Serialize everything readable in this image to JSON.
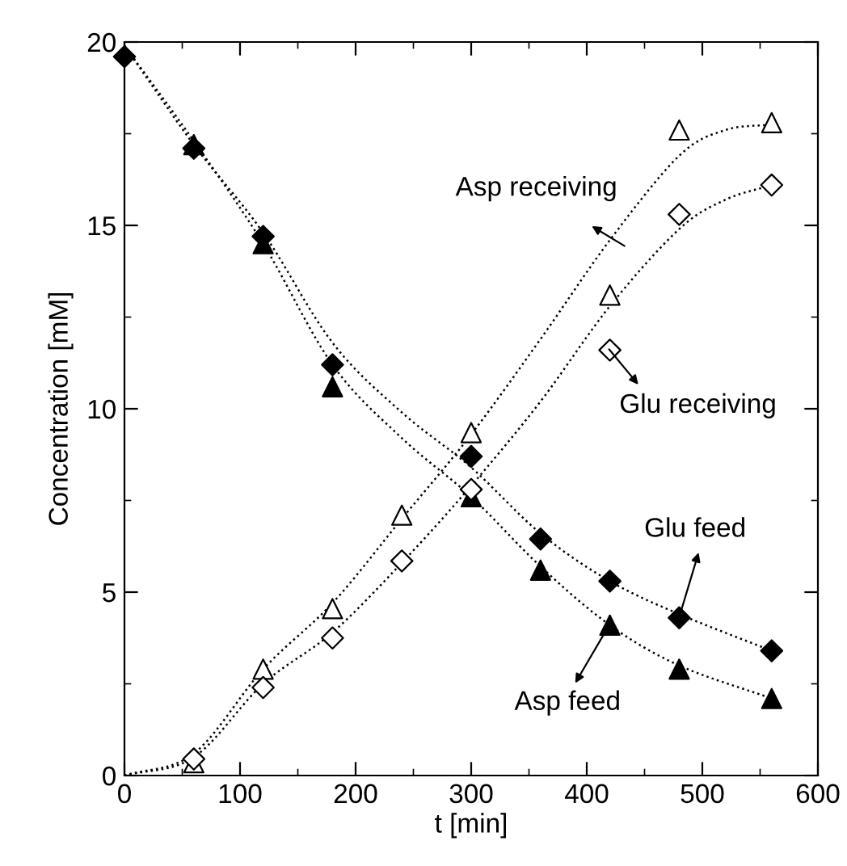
{
  "chart_data": {
    "type": "scatter",
    "xlabel": "t [min]",
    "ylabel": "Concentration [mM]",
    "xlim": [
      0,
      600
    ],
    "ylim": [
      0,
      20
    ],
    "xticks": [
      0,
      100,
      200,
      300,
      400,
      500,
      600
    ],
    "yticks": [
      0,
      5,
      10,
      15,
      20
    ],
    "grid": false,
    "legend": false,
    "series": [
      {
        "type": "line",
        "marker": "none",
        "line_style": "dotted",
        "color": "#000000",
        "x": [
          0,
          60,
          120,
          180,
          240,
          300,
          360,
          420,
          480,
          560
        ],
        "values": [
          19.9,
          17.2,
          14.8,
          11.8,
          9.9,
          8.4,
          6.6,
          5.3,
          4.4,
          3.4
        ]
      },
      {
        "type": "line",
        "marker": "none",
        "line_style": "dotted",
        "color": "#000000",
        "x": [
          0,
          60,
          120,
          180,
          240,
          300,
          360,
          420,
          480,
          560
        ],
        "values": [
          19.9,
          17.3,
          14.5,
          11.2,
          9.2,
          7.6,
          5.7,
          4.1,
          3.0,
          2.1
        ]
      },
      {
        "type": "line",
        "marker": "none",
        "line_style": "dotted",
        "color": "#000000",
        "x": [
          0,
          60,
          120,
          180,
          240,
          300,
          360,
          420,
          480,
          520,
          560
        ],
        "values": [
          0,
          0.6,
          2.9,
          4.7,
          7.0,
          9.3,
          11.9,
          14.6,
          16.9,
          17.6,
          17.75
        ]
      },
      {
        "type": "line",
        "marker": "none",
        "line_style": "dotted",
        "color": "#000000",
        "x": [
          0,
          60,
          120,
          180,
          240,
          300,
          360,
          420,
          480,
          520,
          560
        ],
        "values": [
          0,
          0.5,
          2.5,
          3.9,
          5.8,
          7.9,
          10.2,
          12.8,
          14.9,
          15.7,
          16.1
        ]
      },
      {
        "marker": "diamond",
        "color": "#000000",
        "x": [
          0,
          60,
          120,
          180,
          300,
          360,
          420,
          480,
          560
        ],
        "values": [
          19.6,
          17.1,
          14.7,
          11.2,
          8.7,
          6.45,
          5.3,
          4.3,
          3.4
        ]
      },
      {
        "marker": "triangle",
        "color": "#000000",
        "x": [
          60,
          120,
          180,
          300,
          360,
          420,
          480,
          560
        ],
        "values": [
          17.2,
          14.5,
          10.6,
          7.6,
          5.6,
          4.1,
          2.9,
          2.1
        ]
      },
      {
        "marker": "triangle",
        "color": "#ffffff",
        "x": [
          60,
          120,
          180,
          240,
          300,
          420,
          480,
          560
        ],
        "values": [
          0.35,
          2.9,
          4.55,
          7.1,
          9.35,
          13.1,
          17.6,
          17.8
        ]
      },
      {
        "marker": "diamond",
        "color": "#ffffff",
        "x": [
          60,
          120,
          180,
          240,
          300,
          420,
          480,
          560
        ],
        "values": [
          0.45,
          2.4,
          3.75,
          5.85,
          7.8,
          11.6,
          15.3,
          16.1
        ]
      }
    ],
    "annotations": [
      "Asp receiving",
      "Glu receiving",
      "Glu feed",
      "Asp feed"
    ]
  }
}
